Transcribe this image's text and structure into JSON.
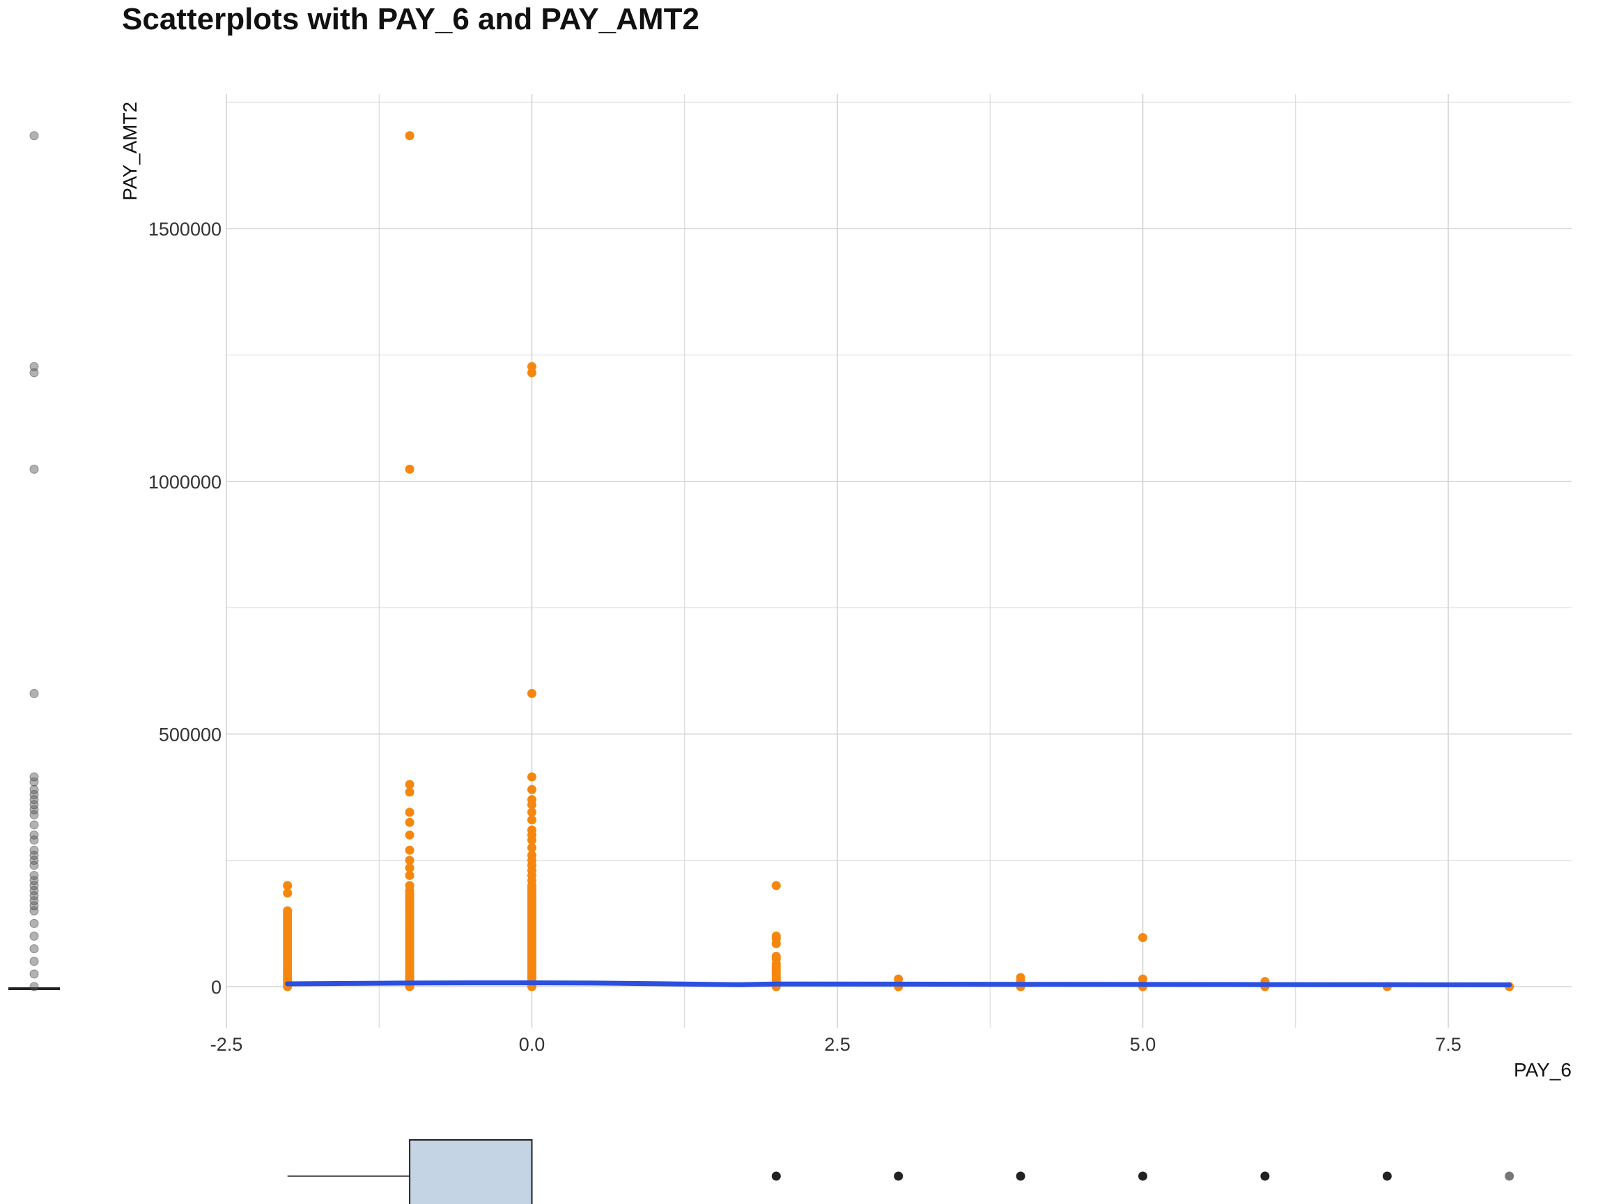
{
  "chart_data": {
    "type": "scatter",
    "title": "Scatterplots with PAY_6 and PAY_AMT2",
    "xlabel": "PAY_6",
    "ylabel": "PAY_AMT2",
    "xlim": [
      -2.5,
      8.5
    ],
    "ylim": [
      -100000,
      1770000
    ],
    "x_ticks": [
      -2.5,
      0.0,
      2.5,
      5.0,
      7.5
    ],
    "x_tick_labels": [
      "-2.5",
      "0.0",
      "2.5",
      "5.0",
      "7.5"
    ],
    "y_ticks": [
      0,
      500000,
      1000000,
      1500000
    ],
    "y_tick_labels": [
      "0",
      "500000",
      "1000000",
      "1500000"
    ],
    "grid": true,
    "colors": {
      "points": "#f5870f",
      "smooth": "#2b4fe0",
      "box_fill": "#c5d4e4",
      "marginal": "#222222",
      "grid": "#d4d4d4"
    },
    "points": [
      {
        "x": -2,
        "y": [
          0,
          5000,
          10000,
          15000,
          20000,
          25000,
          30000,
          35000,
          40000,
          45000,
          50000,
          55000,
          60000,
          65000,
          70000,
          75000,
          80000,
          85000,
          90000,
          95000,
          100000,
          105000,
          110000,
          115000,
          120000,
          125000,
          130000,
          135000,
          140000,
          145000,
          150000,
          185000,
          200000
        ]
      },
      {
        "x": -1,
        "y": [
          0,
          5000,
          10000,
          15000,
          20000,
          25000,
          30000,
          35000,
          40000,
          45000,
          50000,
          55000,
          60000,
          65000,
          70000,
          75000,
          80000,
          85000,
          90000,
          95000,
          100000,
          105000,
          110000,
          115000,
          120000,
          125000,
          130000,
          135000,
          140000,
          145000,
          150000,
          155000,
          160000,
          165000,
          170000,
          175000,
          180000,
          185000,
          190000,
          200000,
          220000,
          235000,
          250000,
          270000,
          300000,
          325000,
          345000,
          385000,
          400000,
          1024000,
          1684000
        ]
      },
      {
        "x": 0,
        "y": [
          0,
          5000,
          10000,
          15000,
          20000,
          25000,
          30000,
          35000,
          40000,
          45000,
          50000,
          55000,
          60000,
          65000,
          70000,
          75000,
          80000,
          85000,
          90000,
          95000,
          100000,
          105000,
          110000,
          115000,
          120000,
          125000,
          130000,
          135000,
          140000,
          145000,
          150000,
          155000,
          160000,
          165000,
          170000,
          175000,
          180000,
          185000,
          190000,
          195000,
          200000,
          210000,
          220000,
          230000,
          240000,
          250000,
          260000,
          275000,
          290000,
          300000,
          310000,
          330000,
          345000,
          360000,
          370000,
          390000,
          415000,
          580000,
          1215000,
          1227000
        ]
      },
      {
        "x": 2,
        "y": [
          0,
          5000,
          10000,
          15000,
          20000,
          25000,
          30000,
          35000,
          40000,
          45000,
          55000,
          60000,
          85000,
          95000,
          100000,
          200000
        ]
      },
      {
        "x": 3,
        "y": [
          0,
          5000,
          15000
        ]
      },
      {
        "x": 4,
        "y": [
          0,
          5000,
          10000,
          18000
        ]
      },
      {
        "x": 5,
        "y": [
          0,
          5000,
          15000,
          97000
        ]
      },
      {
        "x": 6,
        "y": [
          0,
          5000,
          10000
        ]
      },
      {
        "x": 7,
        "y": [
          0
        ]
      },
      {
        "x": 8,
        "y": [
          0
        ]
      }
    ],
    "smooth": [
      [
        -2,
        5500
      ],
      [
        -1.5,
        6300
      ],
      [
        -1,
        7000
      ],
      [
        -0.5,
        7400
      ],
      [
        0,
        7500
      ],
      [
        0.5,
        7000
      ],
      [
        1,
        5800
      ],
      [
        1.5,
        4300
      ],
      [
        1.7,
        3800
      ],
      [
        2,
        5200
      ],
      [
        3,
        5000
      ],
      [
        4,
        4600
      ],
      [
        5,
        4300
      ],
      [
        6,
        4000
      ],
      [
        7,
        3700
      ],
      [
        8,
        3500
      ]
    ],
    "x_boxplot": {
      "whisker_low": -2,
      "q1": -1,
      "q3": 0,
      "outliers": [
        2,
        3,
        4,
        5,
        6,
        7,
        8
      ]
    },
    "y_marginal_outliers": [
      0,
      25000,
      50000,
      75000,
      100000,
      125000,
      150000,
      160000,
      170000,
      180000,
      190000,
      200000,
      210000,
      220000,
      240000,
      250000,
      260000,
      270000,
      290000,
      300000,
      320000,
      340000,
      350000,
      360000,
      370000,
      380000,
      390000,
      405000,
      415000,
      580000,
      1024000,
      1215000,
      1227000,
      1684000
    ]
  }
}
